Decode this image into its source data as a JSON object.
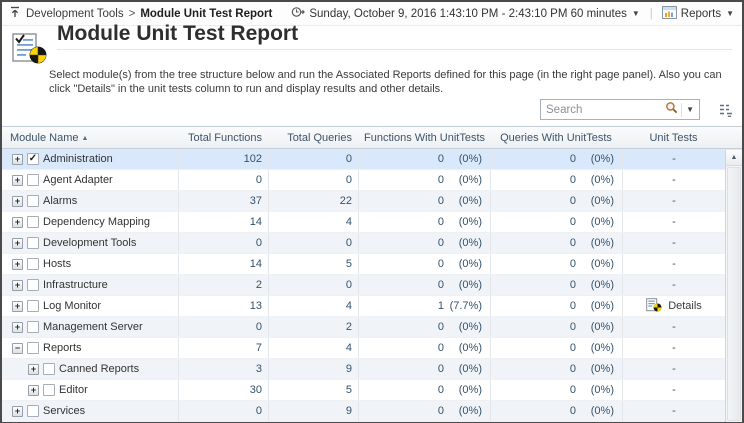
{
  "topbar": {
    "breadcrumb": {
      "parent": "Development Tools",
      "separator": ">",
      "current": "Module Unit Test Report"
    },
    "time_range": "Sunday, October 9, 2016 1:43:10 PM - 2:43:10 PM 60 minutes",
    "reports_label": "Reports"
  },
  "page": {
    "title": "Module Unit Test Report",
    "description": "Select module(s) from the tree structure below and run the Associated Reports defined for this page (in the right page panel). Also you can click \"Details\" in the unit tests column to run and display results and other details."
  },
  "search": {
    "placeholder": "Search"
  },
  "table": {
    "sort_indicator": "▲",
    "columns": [
      "Module Name",
      "Total Functions",
      "Total Queries",
      "Functions With UnitTests",
      "Queries With UnitTests",
      "Unit Tests"
    ],
    "details_label": "Details",
    "rows": [
      {
        "name": "Administration",
        "level": 0,
        "expander": "+",
        "checked": true,
        "selected": true,
        "total_functions": "102",
        "total_queries": "0",
        "func_ut": "0",
        "func_ut_pct": "(0%)",
        "query_ut": "0",
        "query_ut_pct": "(0%)",
        "unit_tests": "-"
      },
      {
        "name": "Agent Adapter",
        "level": 0,
        "expander": "+",
        "checked": false,
        "selected": false,
        "total_functions": "0",
        "total_queries": "0",
        "func_ut": "0",
        "func_ut_pct": "(0%)",
        "query_ut": "0",
        "query_ut_pct": "(0%)",
        "unit_tests": "-"
      },
      {
        "name": "Alarms",
        "level": 0,
        "expander": "+",
        "checked": false,
        "selected": false,
        "total_functions": "37",
        "total_queries": "22",
        "func_ut": "0",
        "func_ut_pct": "(0%)",
        "query_ut": "0",
        "query_ut_pct": "(0%)",
        "unit_tests": "-"
      },
      {
        "name": "Dependency Mapping",
        "level": 0,
        "expander": "+",
        "checked": false,
        "selected": false,
        "total_functions": "14",
        "total_queries": "4",
        "func_ut": "0",
        "func_ut_pct": "(0%)",
        "query_ut": "0",
        "query_ut_pct": "(0%)",
        "unit_tests": "-"
      },
      {
        "name": "Development Tools",
        "level": 0,
        "expander": "+",
        "checked": false,
        "selected": false,
        "total_functions": "0",
        "total_queries": "0",
        "func_ut": "0",
        "func_ut_pct": "(0%)",
        "query_ut": "0",
        "query_ut_pct": "(0%)",
        "unit_tests": "-"
      },
      {
        "name": "Hosts",
        "level": 0,
        "expander": "+",
        "checked": false,
        "selected": false,
        "total_functions": "14",
        "total_queries": "5",
        "func_ut": "0",
        "func_ut_pct": "(0%)",
        "query_ut": "0",
        "query_ut_pct": "(0%)",
        "unit_tests": "-"
      },
      {
        "name": "Infrastructure",
        "level": 0,
        "expander": "+",
        "checked": false,
        "selected": false,
        "total_functions": "2",
        "total_queries": "0",
        "func_ut": "0",
        "func_ut_pct": "(0%)",
        "query_ut": "0",
        "query_ut_pct": "(0%)",
        "unit_tests": "-"
      },
      {
        "name": "Log Monitor",
        "level": 0,
        "expander": "+",
        "checked": false,
        "selected": false,
        "total_functions": "13",
        "total_queries": "4",
        "func_ut": "1",
        "func_ut_pct": "(7.7%)",
        "query_ut": "0",
        "query_ut_pct": "(0%)",
        "unit_tests": "Details"
      },
      {
        "name": "Management Server",
        "level": 0,
        "expander": "+",
        "checked": false,
        "selected": false,
        "total_functions": "0",
        "total_queries": "2",
        "func_ut": "0",
        "func_ut_pct": "(0%)",
        "query_ut": "0",
        "query_ut_pct": "(0%)",
        "unit_tests": "-"
      },
      {
        "name": "Reports",
        "level": 0,
        "expander": "−",
        "checked": false,
        "selected": false,
        "total_functions": "7",
        "total_queries": "4",
        "func_ut": "0",
        "func_ut_pct": "(0%)",
        "query_ut": "0",
        "query_ut_pct": "(0%)",
        "unit_tests": "-"
      },
      {
        "name": "Canned Reports",
        "level": 1,
        "expander": "+",
        "checked": false,
        "selected": false,
        "total_functions": "3",
        "total_queries": "9",
        "func_ut": "0",
        "func_ut_pct": "(0%)",
        "query_ut": "0",
        "query_ut_pct": "(0%)",
        "unit_tests": "-"
      },
      {
        "name": "Editor",
        "level": 1,
        "expander": "+",
        "checked": false,
        "selected": false,
        "total_functions": "30",
        "total_queries": "5",
        "func_ut": "0",
        "func_ut_pct": "(0%)",
        "query_ut": "0",
        "query_ut_pct": "(0%)",
        "unit_tests": "-"
      },
      {
        "name": "Services",
        "level": 0,
        "expander": "+",
        "checked": false,
        "selected": false,
        "total_functions": "0",
        "total_queries": "9",
        "func_ut": "0",
        "func_ut_pct": "(0%)",
        "query_ut": "0",
        "query_ut_pct": "(0%)",
        "unit_tests": "-"
      }
    ]
  },
  "colors": {
    "selected_row": "#d9e9fb",
    "stripe_row": "#f0f4f8",
    "header_text": "#3f5468",
    "pie_yellow": "#ffd400",
    "pie_black": "#151515",
    "doc_line_blue": "#6f9fd0"
  }
}
